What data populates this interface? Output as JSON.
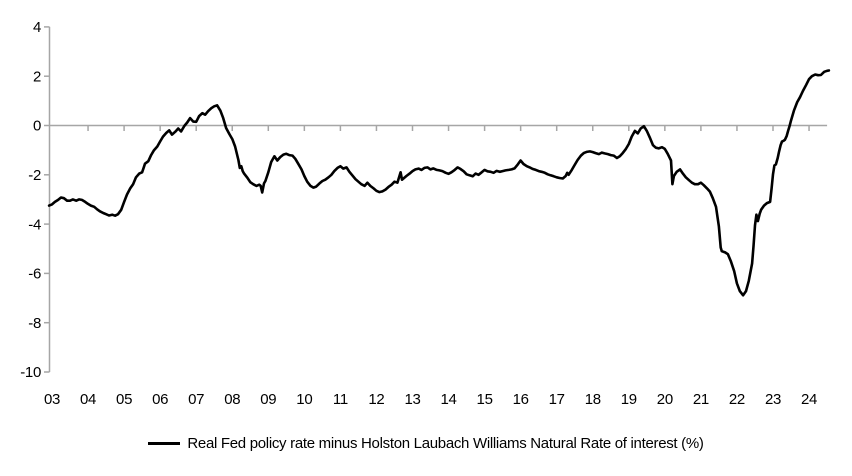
{
  "chart_data": {
    "type": "line",
    "title": "",
    "legend_label": "Real Fed policy rate minus Holston Laubach Williams Natural Rate of interest (%)",
    "legend_position": "bottom-center",
    "grid": false,
    "zero_baseline": true,
    "xlim": [
      2002.9,
      2024.58
    ],
    "ylim": [
      -10,
      4
    ],
    "x_axis": {
      "tick_labels": [
        "03",
        "04",
        "05",
        "06",
        "07",
        "08",
        "09",
        "10",
        "11",
        "12",
        "13",
        "14",
        "15",
        "16",
        "17",
        "18",
        "19",
        "20",
        "21",
        "22",
        "23",
        "24"
      ]
    },
    "y_axis": {
      "tick_labels": [
        "4",
        "2",
        "0",
        "-2",
        "-4",
        "-6",
        "-8",
        "-10"
      ],
      "tick_values": [
        4,
        2,
        0,
        -2,
        -4,
        -6,
        -8,
        -10
      ]
    },
    "colors": {
      "line": "#000000",
      "axis": "#a6a6a6",
      "text": "#000000",
      "background": "#ffffff"
    },
    "series": [
      {
        "name": "Real Fed policy rate minus Holston Laubach Williams Natural Rate of interest (%)",
        "points": [
          [
            2002.92,
            -3.25
          ],
          [
            2003.0,
            -3.2
          ],
          [
            2003.08,
            -3.1
          ],
          [
            2003.17,
            -3.02
          ],
          [
            2003.25,
            -2.92
          ],
          [
            2003.33,
            -2.95
          ],
          [
            2003.42,
            -3.05
          ],
          [
            2003.5,
            -3.05
          ],
          [
            2003.58,
            -3.0
          ],
          [
            2003.67,
            -3.05
          ],
          [
            2003.75,
            -3.0
          ],
          [
            2003.83,
            -3.02
          ],
          [
            2003.92,
            -3.1
          ],
          [
            2004.0,
            -3.18
          ],
          [
            2004.08,
            -3.25
          ],
          [
            2004.17,
            -3.3
          ],
          [
            2004.25,
            -3.4
          ],
          [
            2004.33,
            -3.48
          ],
          [
            2004.42,
            -3.55
          ],
          [
            2004.5,
            -3.6
          ],
          [
            2004.58,
            -3.65
          ],
          [
            2004.67,
            -3.62
          ],
          [
            2004.75,
            -3.66
          ],
          [
            2004.83,
            -3.6
          ],
          [
            2004.92,
            -3.42
          ],
          [
            2005.0,
            -3.1
          ],
          [
            2005.08,
            -2.8
          ],
          [
            2005.17,
            -2.55
          ],
          [
            2005.25,
            -2.38
          ],
          [
            2005.33,
            -2.1
          ],
          [
            2005.42,
            -1.95
          ],
          [
            2005.5,
            -1.9
          ],
          [
            2005.54,
            -1.72
          ],
          [
            2005.58,
            -1.55
          ],
          [
            2005.67,
            -1.45
          ],
          [
            2005.75,
            -1.2
          ],
          [
            2005.83,
            -1.0
          ],
          [
            2005.92,
            -0.85
          ],
          [
            2006.0,
            -0.65
          ],
          [
            2006.08,
            -0.45
          ],
          [
            2006.17,
            -0.3
          ],
          [
            2006.25,
            -0.2
          ],
          [
            2006.33,
            -0.37
          ],
          [
            2006.42,
            -0.25
          ],
          [
            2006.5,
            -0.12
          ],
          [
            2006.58,
            -0.24
          ],
          [
            2006.67,
            -0.02
          ],
          [
            2006.75,
            0.12
          ],
          [
            2006.83,
            0.3
          ],
          [
            2006.92,
            0.16
          ],
          [
            2007.0,
            0.15
          ],
          [
            2007.08,
            0.38
          ],
          [
            2007.17,
            0.5
          ],
          [
            2007.25,
            0.44
          ],
          [
            2007.33,
            0.58
          ],
          [
            2007.42,
            0.7
          ],
          [
            2007.5,
            0.78
          ],
          [
            2007.58,
            0.82
          ],
          [
            2007.67,
            0.6
          ],
          [
            2007.75,
            0.3
          ],
          [
            2007.83,
            -0.1
          ],
          [
            2007.92,
            -0.35
          ],
          [
            2008.0,
            -0.55
          ],
          [
            2008.08,
            -0.85
          ],
          [
            2008.17,
            -1.4
          ],
          [
            2008.21,
            -1.72
          ],
          [
            2008.25,
            -1.65
          ],
          [
            2008.29,
            -1.85
          ],
          [
            2008.33,
            -1.95
          ],
          [
            2008.42,
            -2.12
          ],
          [
            2008.5,
            -2.3
          ],
          [
            2008.58,
            -2.38
          ],
          [
            2008.67,
            -2.45
          ],
          [
            2008.75,
            -2.4
          ],
          [
            2008.79,
            -2.45
          ],
          [
            2008.83,
            -2.72
          ],
          [
            2008.88,
            -2.35
          ],
          [
            2008.92,
            -2.25
          ],
          [
            2009.0,
            -1.9
          ],
          [
            2009.08,
            -1.48
          ],
          [
            2009.17,
            -1.25
          ],
          [
            2009.25,
            -1.42
          ],
          [
            2009.33,
            -1.28
          ],
          [
            2009.42,
            -1.18
          ],
          [
            2009.5,
            -1.15
          ],
          [
            2009.58,
            -1.2
          ],
          [
            2009.67,
            -1.22
          ],
          [
            2009.75,
            -1.35
          ],
          [
            2009.83,
            -1.55
          ],
          [
            2009.92,
            -1.78
          ],
          [
            2010.0,
            -2.05
          ],
          [
            2010.08,
            -2.28
          ],
          [
            2010.17,
            -2.45
          ],
          [
            2010.25,
            -2.52
          ],
          [
            2010.33,
            -2.48
          ],
          [
            2010.42,
            -2.35
          ],
          [
            2010.5,
            -2.25
          ],
          [
            2010.58,
            -2.2
          ],
          [
            2010.67,
            -2.1
          ],
          [
            2010.75,
            -2.0
          ],
          [
            2010.83,
            -1.85
          ],
          [
            2010.92,
            -1.72
          ],
          [
            2011.0,
            -1.65
          ],
          [
            2011.08,
            -1.75
          ],
          [
            2011.17,
            -1.7
          ],
          [
            2011.25,
            -1.88
          ],
          [
            2011.33,
            -2.02
          ],
          [
            2011.42,
            -2.18
          ],
          [
            2011.5,
            -2.28
          ],
          [
            2011.58,
            -2.38
          ],
          [
            2011.67,
            -2.45
          ],
          [
            2011.75,
            -2.32
          ],
          [
            2011.83,
            -2.45
          ],
          [
            2011.92,
            -2.55
          ],
          [
            2012.0,
            -2.65
          ],
          [
            2012.08,
            -2.7
          ],
          [
            2012.17,
            -2.67
          ],
          [
            2012.25,
            -2.6
          ],
          [
            2012.33,
            -2.5
          ],
          [
            2012.42,
            -2.4
          ],
          [
            2012.5,
            -2.28
          ],
          [
            2012.58,
            -2.32
          ],
          [
            2012.67,
            -1.9
          ],
          [
            2012.71,
            -2.2
          ],
          [
            2012.83,
            -2.05
          ],
          [
            2012.92,
            -1.95
          ],
          [
            2013.0,
            -1.85
          ],
          [
            2013.08,
            -1.78
          ],
          [
            2013.17,
            -1.75
          ],
          [
            2013.25,
            -1.8
          ],
          [
            2013.33,
            -1.72
          ],
          [
            2013.42,
            -1.7
          ],
          [
            2013.5,
            -1.78
          ],
          [
            2013.58,
            -1.74
          ],
          [
            2013.67,
            -1.8
          ],
          [
            2013.75,
            -1.82
          ],
          [
            2013.83,
            -1.85
          ],
          [
            2013.92,
            -1.92
          ],
          [
            2014.0,
            -1.96
          ],
          [
            2014.08,
            -1.9
          ],
          [
            2014.17,
            -1.8
          ],
          [
            2014.25,
            -1.7
          ],
          [
            2014.33,
            -1.76
          ],
          [
            2014.42,
            -1.86
          ],
          [
            2014.5,
            -1.98
          ],
          [
            2014.58,
            -2.02
          ],
          [
            2014.67,
            -2.06
          ],
          [
            2014.75,
            -1.95
          ],
          [
            2014.83,
            -2.0
          ],
          [
            2014.92,
            -1.9
          ],
          [
            2015.0,
            -1.8
          ],
          [
            2015.08,
            -1.86
          ],
          [
            2015.17,
            -1.88
          ],
          [
            2015.25,
            -1.92
          ],
          [
            2015.33,
            -1.84
          ],
          [
            2015.42,
            -1.88
          ],
          [
            2015.5,
            -1.85
          ],
          [
            2015.58,
            -1.82
          ],
          [
            2015.67,
            -1.8
          ],
          [
            2015.75,
            -1.78
          ],
          [
            2015.83,
            -1.74
          ],
          [
            2015.92,
            -1.58
          ],
          [
            2016.0,
            -1.42
          ],
          [
            2016.08,
            -1.56
          ],
          [
            2016.17,
            -1.65
          ],
          [
            2016.25,
            -1.7
          ],
          [
            2016.33,
            -1.76
          ],
          [
            2016.42,
            -1.8
          ],
          [
            2016.5,
            -1.85
          ],
          [
            2016.58,
            -1.88
          ],
          [
            2016.67,
            -1.92
          ],
          [
            2016.75,
            -1.98
          ],
          [
            2016.83,
            -2.02
          ],
          [
            2016.92,
            -2.06
          ],
          [
            2017.0,
            -2.1
          ],
          [
            2017.08,
            -2.13
          ],
          [
            2017.17,
            -2.15
          ],
          [
            2017.25,
            -2.05
          ],
          [
            2017.29,
            -1.92
          ],
          [
            2017.33,
            -2.0
          ],
          [
            2017.42,
            -1.8
          ],
          [
            2017.5,
            -1.6
          ],
          [
            2017.58,
            -1.4
          ],
          [
            2017.67,
            -1.22
          ],
          [
            2017.75,
            -1.12
          ],
          [
            2017.83,
            -1.07
          ],
          [
            2017.92,
            -1.05
          ],
          [
            2018.0,
            -1.08
          ],
          [
            2018.08,
            -1.12
          ],
          [
            2018.17,
            -1.16
          ],
          [
            2018.25,
            -1.1
          ],
          [
            2018.33,
            -1.13
          ],
          [
            2018.42,
            -1.16
          ],
          [
            2018.5,
            -1.2
          ],
          [
            2018.58,
            -1.22
          ],
          [
            2018.67,
            -1.32
          ],
          [
            2018.75,
            -1.25
          ],
          [
            2018.83,
            -1.12
          ],
          [
            2018.92,
            -0.95
          ],
          [
            2019.0,
            -0.75
          ],
          [
            2019.08,
            -0.45
          ],
          [
            2019.17,
            -0.22
          ],
          [
            2019.25,
            -0.32
          ],
          [
            2019.33,
            -0.12
          ],
          [
            2019.42,
            -0.03
          ],
          [
            2019.5,
            -0.22
          ],
          [
            2019.58,
            -0.48
          ],
          [
            2019.67,
            -0.8
          ],
          [
            2019.75,
            -0.9
          ],
          [
            2019.83,
            -0.93
          ],
          [
            2019.92,
            -0.88
          ],
          [
            2020.0,
            -0.95
          ],
          [
            2020.08,
            -1.15
          ],
          [
            2020.17,
            -1.42
          ],
          [
            2020.21,
            -2.38
          ],
          [
            2020.25,
            -2.05
          ],
          [
            2020.33,
            -1.88
          ],
          [
            2020.42,
            -1.78
          ],
          [
            2020.5,
            -1.95
          ],
          [
            2020.58,
            -2.1
          ],
          [
            2020.67,
            -2.22
          ],
          [
            2020.75,
            -2.32
          ],
          [
            2020.83,
            -2.38
          ],
          [
            2020.92,
            -2.38
          ],
          [
            2021.0,
            -2.32
          ],
          [
            2021.08,
            -2.42
          ],
          [
            2021.17,
            -2.55
          ],
          [
            2021.25,
            -2.68
          ],
          [
            2021.33,
            -2.95
          ],
          [
            2021.42,
            -3.3
          ],
          [
            2021.5,
            -4.1
          ],
          [
            2021.55,
            -4.95
          ],
          [
            2021.58,
            -5.1
          ],
          [
            2021.67,
            -5.15
          ],
          [
            2021.75,
            -5.22
          ],
          [
            2021.83,
            -5.5
          ],
          [
            2021.92,
            -5.9
          ],
          [
            2022.0,
            -6.4
          ],
          [
            2022.08,
            -6.72
          ],
          [
            2022.17,
            -6.89
          ],
          [
            2022.25,
            -6.72
          ],
          [
            2022.33,
            -6.3
          ],
          [
            2022.42,
            -5.6
          ],
          [
            2022.46,
            -4.9
          ],
          [
            2022.5,
            -4.05
          ],
          [
            2022.54,
            -3.62
          ],
          [
            2022.58,
            -3.88
          ],
          [
            2022.63,
            -3.58
          ],
          [
            2022.67,
            -3.42
          ],
          [
            2022.75,
            -3.25
          ],
          [
            2022.83,
            -3.15
          ],
          [
            2022.92,
            -3.1
          ],
          [
            2022.96,
            -2.55
          ],
          [
            2023.0,
            -1.98
          ],
          [
            2023.04,
            -1.62
          ],
          [
            2023.08,
            -1.58
          ],
          [
            2023.13,
            -1.32
          ],
          [
            2023.17,
            -1.05
          ],
          [
            2023.21,
            -0.8
          ],
          [
            2023.25,
            -0.65
          ],
          [
            2023.29,
            -0.62
          ],
          [
            2023.33,
            -0.58
          ],
          [
            2023.38,
            -0.42
          ],
          [
            2023.42,
            -0.22
          ],
          [
            2023.46,
            -0.02
          ],
          [
            2023.5,
            0.2
          ],
          [
            2023.58,
            0.6
          ],
          [
            2023.67,
            0.95
          ],
          [
            2023.75,
            1.15
          ],
          [
            2023.83,
            1.4
          ],
          [
            2023.92,
            1.65
          ],
          [
            2024.0,
            1.88
          ],
          [
            2024.08,
            2.0
          ],
          [
            2024.17,
            2.07
          ],
          [
            2024.25,
            2.04
          ],
          [
            2024.33,
            2.05
          ],
          [
            2024.42,
            2.18
          ],
          [
            2024.5,
            2.22
          ],
          [
            2024.55,
            2.23
          ]
        ]
      }
    ]
  }
}
